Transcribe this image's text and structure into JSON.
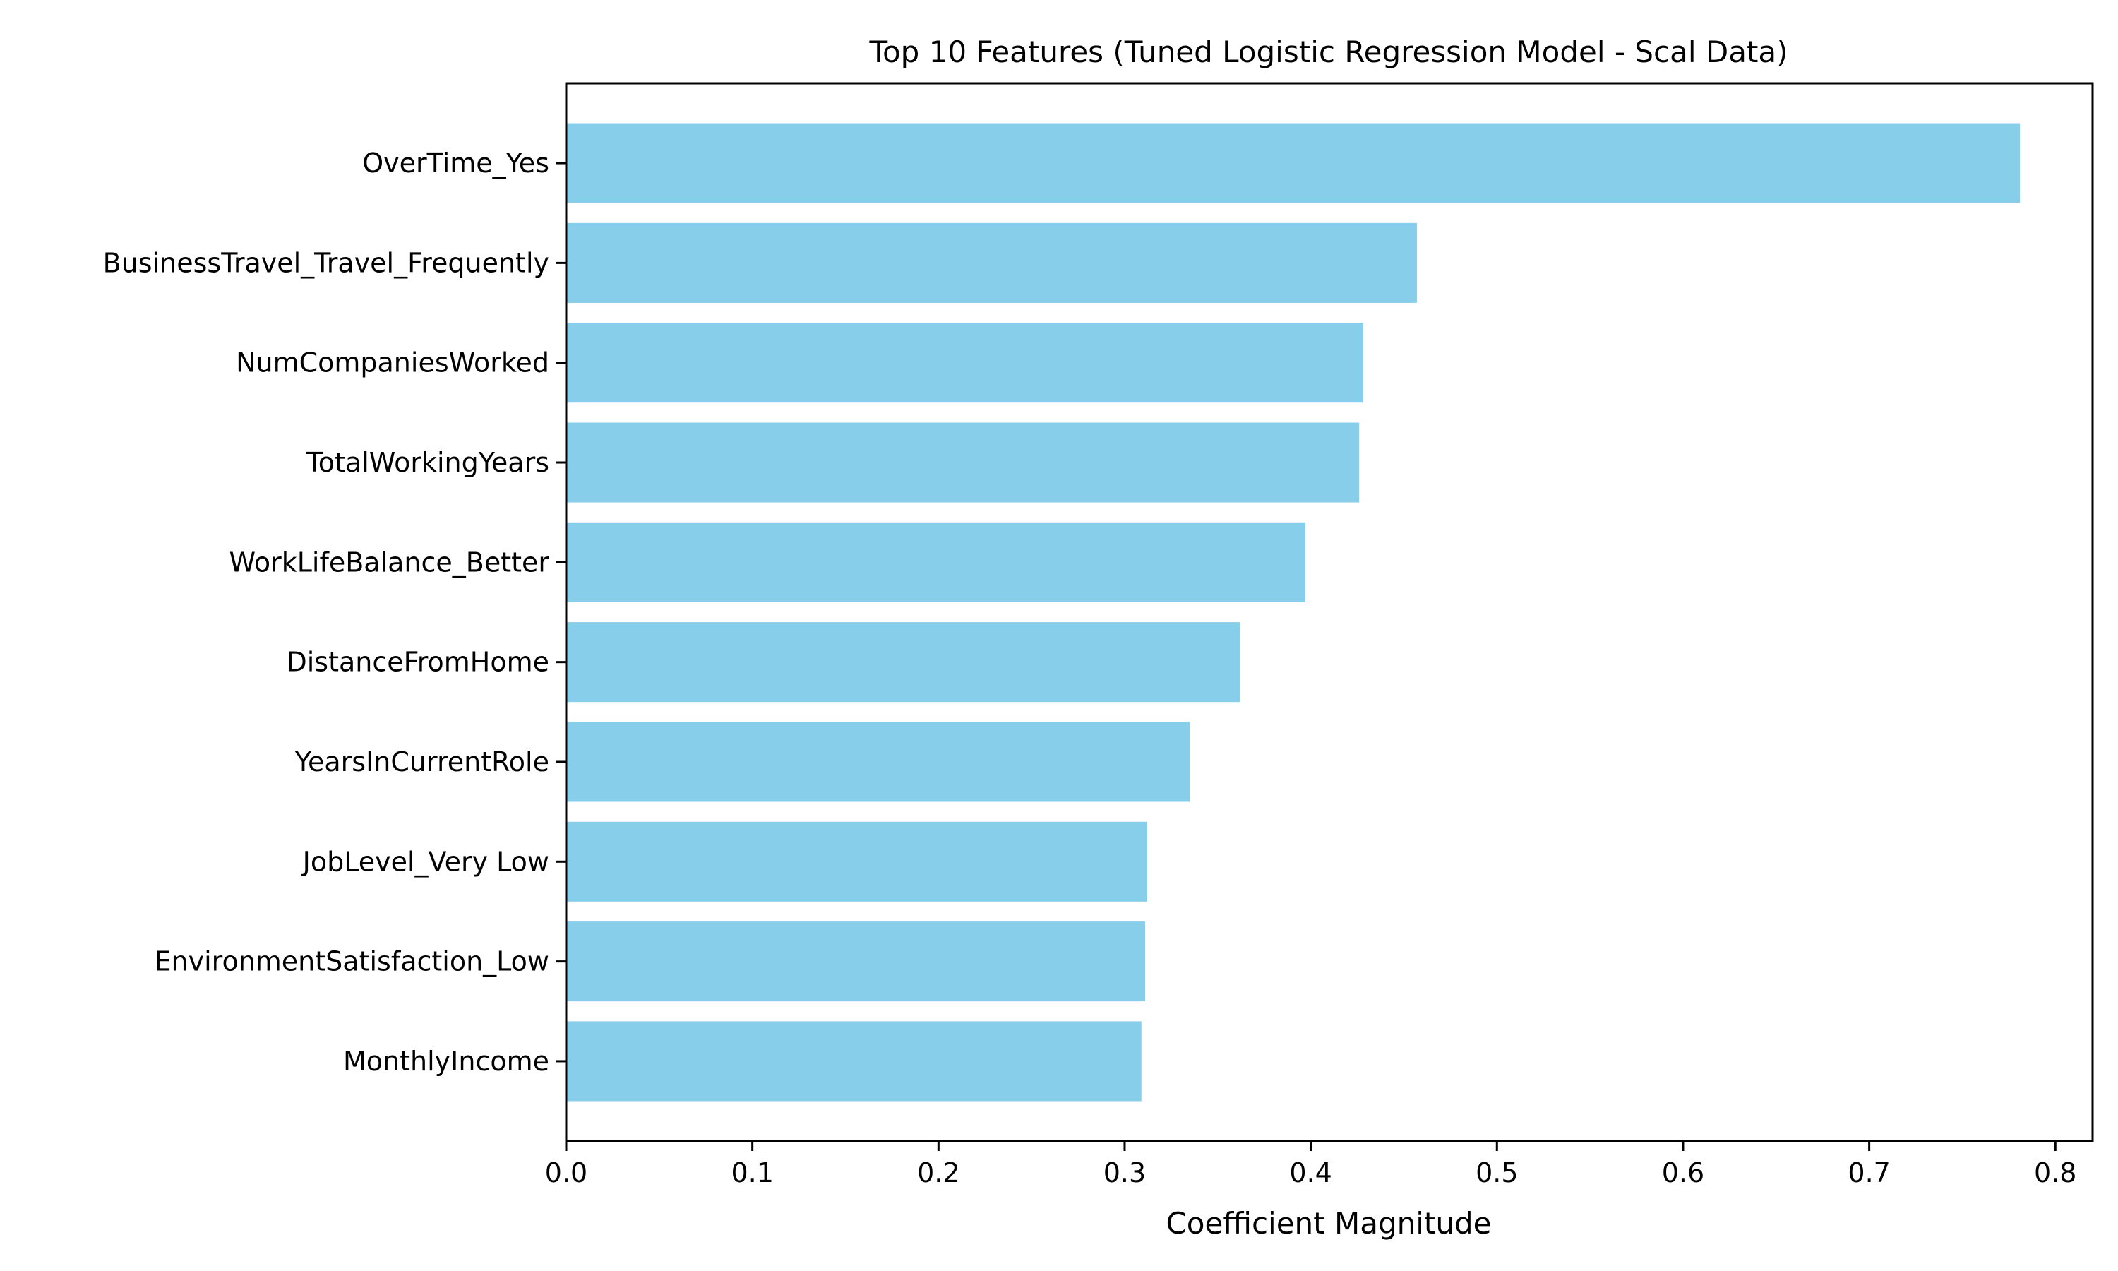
{
  "chart_data": {
    "type": "bar",
    "orientation": "horizontal",
    "title": "Top 10 Features (Tuned Logistic Regression Model - Scal Data)",
    "xlabel": "Coefficient Magnitude",
    "ylabel": "",
    "categories": [
      "OverTime_Yes",
      "BusinessTravel_Travel_Frequently",
      "NumCompaniesWorked",
      "TotalWorkingYears",
      "WorkLifeBalance_Better",
      "DistanceFromHome",
      "YearsInCurrentRole",
      "JobLevel_Very Low",
      "EnvironmentSatisfaction_Low",
      "MonthlyIncome"
    ],
    "values": [
      0.781,
      0.457,
      0.428,
      0.426,
      0.397,
      0.362,
      0.335,
      0.312,
      0.311,
      0.309
    ],
    "xlim": [
      0,
      0.82
    ],
    "xticks": [
      "0.0",
      "0.1",
      "0.2",
      "0.3",
      "0.4",
      "0.5",
      "0.6",
      "0.7",
      "0.8"
    ],
    "bar_color": "#87CEEB",
    "grid": false,
    "legend": "none"
  }
}
